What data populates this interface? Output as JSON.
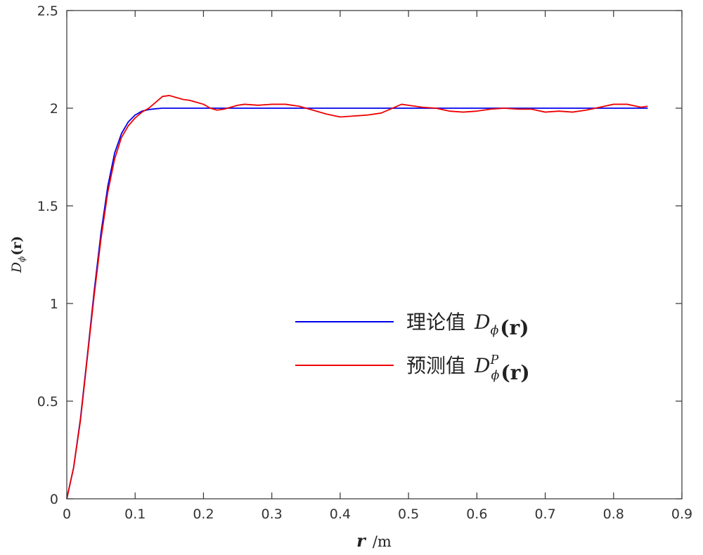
{
  "chart_data": {
    "type": "line",
    "title": "",
    "xlabel": {
      "var": "r",
      "unit": "/m"
    },
    "ylabel": {
      "var": "D",
      "sub": "ϕ",
      "arg": "(r)"
    },
    "xlim": [
      0,
      0.9
    ],
    "ylim": [
      0,
      2.5
    ],
    "x_ticks": [
      "0",
      "0.1",
      "0.2",
      "0.3",
      "0.4",
      "0.5",
      "0.6",
      "0.7",
      "0.8",
      "0.9"
    ],
    "y_ticks": [
      "0",
      "0.5",
      "1",
      "1.5",
      "2",
      "2.5"
    ],
    "grid": false,
    "legend_position": "center-right",
    "series": [
      {
        "legend_prefix": "理论值",
        "legend_math": {
          "var": "D",
          "sub": "ϕ",
          "sup": "",
          "arg": "(r)"
        },
        "color": "#0000ee",
        "points": [
          [
            0,
            0
          ],
          [
            0.01,
            0.16
          ],
          [
            0.02,
            0.41
          ],
          [
            0.03,
            0.73
          ],
          [
            0.04,
            1.06
          ],
          [
            0.05,
            1.36
          ],
          [
            0.06,
            1.6
          ],
          [
            0.07,
            1.77
          ],
          [
            0.08,
            1.87
          ],
          [
            0.09,
            1.93
          ],
          [
            0.1,
            1.965
          ],
          [
            0.11,
            1.985
          ],
          [
            0.12,
            1.993
          ],
          [
            0.13,
            1.997
          ],
          [
            0.14,
            2.0
          ],
          [
            0.2,
            2.0
          ],
          [
            0.3,
            2.0
          ],
          [
            0.4,
            2.0
          ],
          [
            0.5,
            2.0
          ],
          [
            0.6,
            2.0
          ],
          [
            0.7,
            2.0
          ],
          [
            0.8,
            2.0
          ],
          [
            0.85,
            2.0
          ]
        ]
      },
      {
        "legend_prefix": "预测值",
        "legend_math": {
          "var": "D",
          "sub": "ϕ",
          "sup": "P",
          "arg": "(r)"
        },
        "color": "#ee0000",
        "points": [
          [
            0,
            0
          ],
          [
            0.01,
            0.16
          ],
          [
            0.02,
            0.4
          ],
          [
            0.03,
            0.72
          ],
          [
            0.04,
            1.04
          ],
          [
            0.05,
            1.33
          ],
          [
            0.06,
            1.57
          ],
          [
            0.07,
            1.74
          ],
          [
            0.08,
            1.85
          ],
          [
            0.09,
            1.91
          ],
          [
            0.1,
            1.95
          ],
          [
            0.11,
            1.98
          ],
          [
            0.12,
            2.0
          ],
          [
            0.13,
            2.03
          ],
          [
            0.14,
            2.06
          ],
          [
            0.15,
            2.065
          ],
          [
            0.16,
            2.055
          ],
          [
            0.17,
            2.045
          ],
          [
            0.18,
            2.04
          ],
          [
            0.19,
            2.03
          ],
          [
            0.2,
            2.02
          ],
          [
            0.21,
            2.0
          ],
          [
            0.22,
            1.99
          ],
          [
            0.23,
            1.995
          ],
          [
            0.24,
            2.005
          ],
          [
            0.25,
            2.015
          ],
          [
            0.26,
            2.02
          ],
          [
            0.28,
            2.015
          ],
          [
            0.3,
            2.02
          ],
          [
            0.32,
            2.02
          ],
          [
            0.34,
            2.01
          ],
          [
            0.36,
            1.99
          ],
          [
            0.38,
            1.97
          ],
          [
            0.4,
            1.955
          ],
          [
            0.42,
            1.96
          ],
          [
            0.44,
            1.965
          ],
          [
            0.46,
            1.975
          ],
          [
            0.48,
            2.005
          ],
          [
            0.49,
            2.02
          ],
          [
            0.5,
            2.015
          ],
          [
            0.52,
            2.005
          ],
          [
            0.54,
            2.0
          ],
          [
            0.56,
            1.985
          ],
          [
            0.58,
            1.98
          ],
          [
            0.6,
            1.985
          ],
          [
            0.62,
            1.995
          ],
          [
            0.64,
            2.0
          ],
          [
            0.66,
            1.995
          ],
          [
            0.68,
            1.995
          ],
          [
            0.7,
            1.98
          ],
          [
            0.72,
            1.985
          ],
          [
            0.74,
            1.98
          ],
          [
            0.76,
            1.99
          ],
          [
            0.78,
            2.005
          ],
          [
            0.8,
            2.02
          ],
          [
            0.82,
            2.02
          ],
          [
            0.84,
            2.005
          ],
          [
            0.85,
            2.01
          ]
        ]
      }
    ]
  }
}
